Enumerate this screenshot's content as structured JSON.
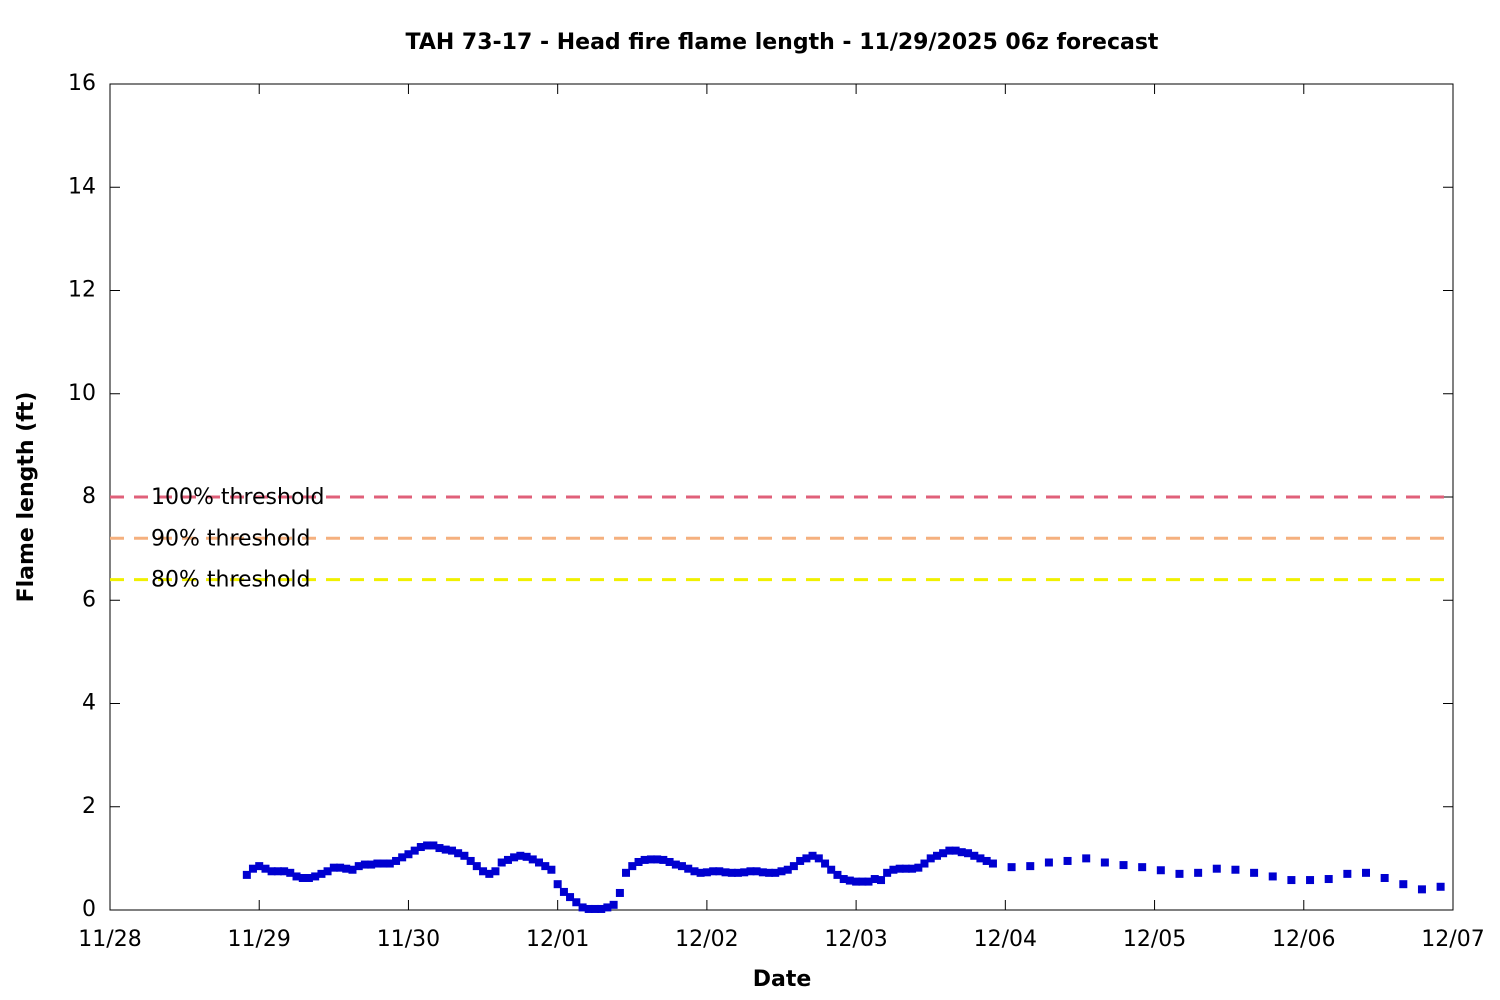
{
  "chart_data": {
    "type": "scatter",
    "title": "TAH 73-17 - Head fire flame length - 11/29/2025 06z forecast",
    "x_label": "Date",
    "y_label": "Flame length (ft)",
    "xlim": [
      0,
      9
    ],
    "xticks": [
      {
        "value": 0,
        "label": "11/28"
      },
      {
        "value": 1,
        "label": "11/29"
      },
      {
        "value": 2,
        "label": "11/30"
      },
      {
        "value": 3,
        "label": "12/01"
      },
      {
        "value": 4,
        "label": "12/02"
      },
      {
        "value": 5,
        "label": "12/03"
      },
      {
        "value": 6,
        "label": "12/04"
      },
      {
        "value": 7,
        "label": "12/05"
      },
      {
        "value": 8,
        "label": "12/06"
      },
      {
        "value": 9,
        "label": "12/07"
      }
    ],
    "ylim": [
      0,
      16
    ],
    "yticks": [
      0,
      2,
      4,
      6,
      8,
      10,
      12,
      14,
      16
    ],
    "thresholds": [
      {
        "label": "100% threshold",
        "value": 8,
        "color": "#e0607a"
      },
      {
        "label": "90% threshold",
        "value": 7.2,
        "color": "#f5b07e"
      },
      {
        "label": "80% threshold",
        "value": 6.4,
        "color": "#f0f000"
      }
    ],
    "series": [
      {
        "color": "#0000d0",
        "x": [
          0.917,
          0.958,
          1,
          1.042,
          1.083,
          1.125,
          1.167,
          1.208,
          1.25,
          1.292,
          1.333,
          1.375,
          1.417,
          1.458,
          1.5,
          1.542,
          1.583,
          1.625,
          1.667,
          1.708,
          1.75,
          1.792,
          1.833,
          1.875,
          1.917,
          1.958,
          2,
          2.042,
          2.083,
          2.125,
          2.167,
          2.208,
          2.25,
          2.292,
          2.333,
          2.375,
          2.417,
          2.458,
          2.5,
          2.542,
          2.583,
          2.625,
          2.667,
          2.708,
          2.75,
          2.792,
          2.833,
          2.875,
          2.917,
          2.958,
          3,
          3.042,
          3.083,
          3.125,
          3.167,
          3.208,
          3.25,
          3.292,
          3.333,
          3.375,
          3.417,
          3.458,
          3.5,
          3.542,
          3.583,
          3.625,
          3.667,
          3.708,
          3.75,
          3.792,
          3.833,
          3.875,
          3.917,
          3.958,
          4,
          4.042,
          4.083,
          4.125,
          4.167,
          4.208,
          4.25,
          4.292,
          4.333,
          4.375,
          4.417,
          4.458,
          4.5,
          4.542,
          4.583,
          4.625,
          4.667,
          4.708,
          4.75,
          4.792,
          4.833,
          4.875,
          4.917,
          4.958,
          5,
          5.042,
          5.083,
          5.125,
          5.167,
          5.208,
          5.25,
          5.292,
          5.333,
          5.375,
          5.417,
          5.458,
          5.5,
          5.542,
          5.583,
          5.625,
          5.667,
          5.708,
          5.75,
          5.792,
          5.833,
          5.875,
          5.917,
          6.042,
          6.167,
          6.292,
          6.417,
          6.542,
          6.667,
          6.792,
          6.917,
          7.042,
          7.167,
          7.292,
          7.417,
          7.542,
          7.667,
          7.792,
          7.917,
          8.042,
          8.167,
          8.292,
          8.417,
          8.542,
          8.667,
          8.792,
          8.917
        ],
        "values": [
          0.68,
          0.8,
          0.85,
          0.8,
          0.75,
          0.75,
          0.75,
          0.72,
          0.65,
          0.62,
          0.62,
          0.65,
          0.7,
          0.75,
          0.82,
          0.82,
          0.8,
          0.78,
          0.85,
          0.88,
          0.88,
          0.9,
          0.9,
          0.9,
          0.95,
          1.02,
          1.08,
          1.15,
          1.22,
          1.25,
          1.25,
          1.2,
          1.17,
          1.15,
          1.1,
          1.05,
          0.95,
          0.85,
          0.75,
          0.7,
          0.75,
          0.92,
          0.97,
          1.02,
          1.05,
          1.03,
          0.98,
          0.92,
          0.85,
          0.78,
          0.5,
          0.35,
          0.25,
          0.15,
          0.05,
          0.02,
          0.02,
          0.02,
          0.05,
          0.1,
          0.33,
          0.72,
          0.85,
          0.93,
          0.97,
          0.98,
          0.98,
          0.97,
          0.93,
          0.88,
          0.85,
          0.8,
          0.75,
          0.72,
          0.73,
          0.75,
          0.75,
          0.73,
          0.72,
          0.72,
          0.73,
          0.75,
          0.75,
          0.73,
          0.72,
          0.72,
          0.75,
          0.78,
          0.85,
          0.95,
          1.0,
          1.05,
          1.0,
          0.9,
          0.78,
          0.68,
          0.6,
          0.57,
          0.55,
          0.55,
          0.55,
          0.6,
          0.58,
          0.72,
          0.78,
          0.8,
          0.8,
          0.8,
          0.82,
          0.9,
          1.0,
          1.05,
          1.1,
          1.15,
          1.15,
          1.12,
          1.1,
          1.05,
          1.0,
          0.95,
          0.9,
          0.83,
          0.85,
          0.92,
          0.95,
          1.0,
          0.92,
          0.87,
          0.83,
          0.77,
          0.7,
          0.72,
          0.8,
          0.78,
          0.72,
          0.65,
          0.58,
          0.58,
          0.6,
          0.7,
          0.72,
          0.62,
          0.5,
          0.4,
          0.45
        ]
      }
    ]
  }
}
